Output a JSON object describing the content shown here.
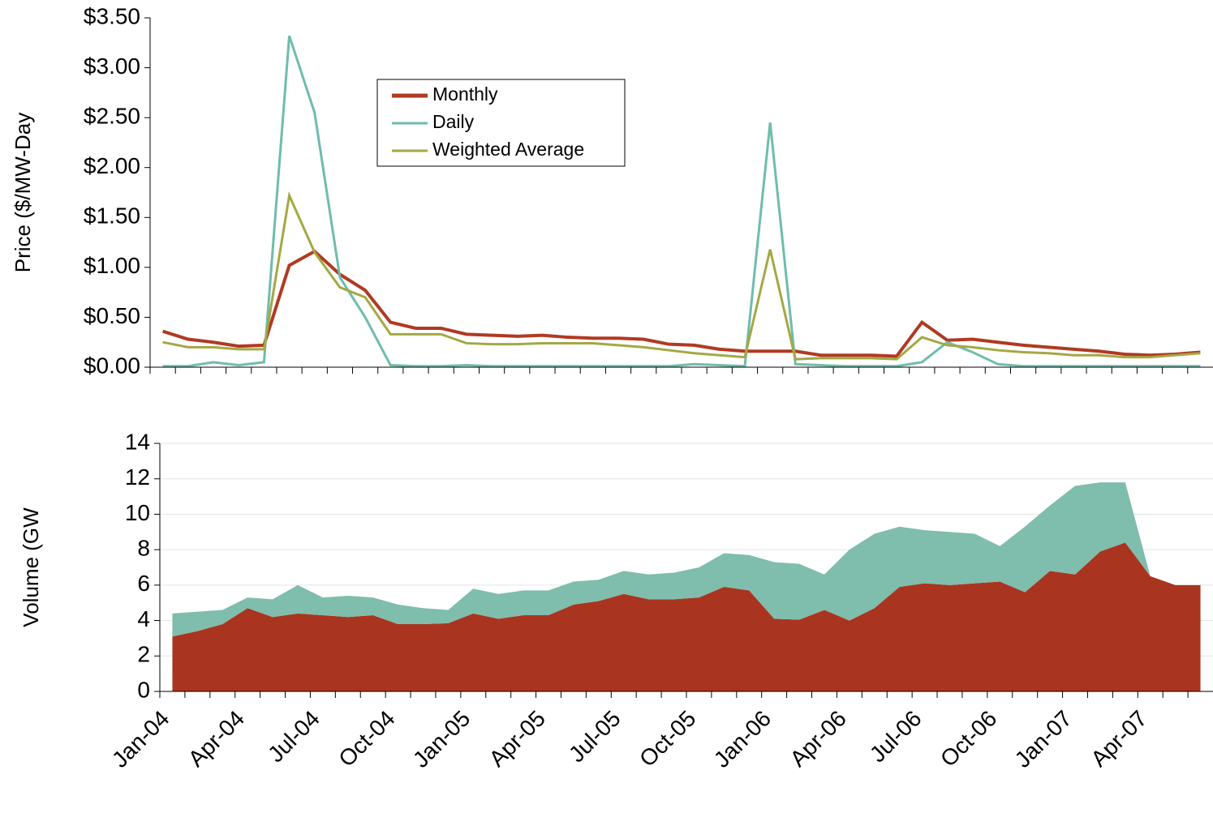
{
  "chart_data": [
    {
      "type": "line",
      "y_label": "Price ($/MW-Day",
      "ylim": [
        0,
        3.5
      ],
      "yticks": [
        {
          "value": 0,
          "label": "$0.00"
        },
        {
          "value": 0.5,
          "label": "$0.50"
        },
        {
          "value": 1,
          "label": "$1.00"
        },
        {
          "value": 1.5,
          "label": "$1.50"
        },
        {
          "value": 2,
          "label": "$2.00"
        },
        {
          "value": 2.5,
          "label": "$2.50"
        },
        {
          "value": 3,
          "label": "$3.00"
        },
        {
          "value": 3.5,
          "label": "$3.50"
        }
      ],
      "grid": false,
      "legend": "upper center",
      "series": [
        {
          "name": "Monthly",
          "color": "#b03a22",
          "values": [
            0.36,
            0.28,
            0.25,
            0.21,
            0.22,
            1.02,
            1.16,
            0.93,
            0.77,
            0.45,
            0.39,
            0.39,
            0.33,
            0.32,
            0.31,
            0.32,
            0.3,
            0.29,
            0.29,
            0.28,
            0.23,
            0.22,
            0.18,
            0.16,
            0.16,
            0.16,
            0.12,
            0.12,
            0.12,
            0.11,
            0.45,
            0.27,
            0.28,
            0.25,
            0.22,
            0.2,
            0.18,
            0.16,
            0.13,
            0.12,
            0.13,
            0.15
          ]
        },
        {
          "name": "Daily",
          "color": "#6fbcac",
          "values": [
            0.01,
            0.01,
            0.05,
            0.02,
            0.05,
            3.32,
            2.55,
            0.9,
            0.5,
            0.02,
            0.01,
            0.01,
            0.02,
            0.01,
            0.01,
            0.01,
            0.01,
            0.01,
            0.01,
            0.01,
            0.01,
            0.03,
            0.02,
            0.01,
            2.45,
            0.03,
            0.02,
            0.01,
            0.01,
            0.01,
            0.05,
            0.25,
            0.15,
            0.03,
            0.01,
            0.01,
            0.01,
            0.01,
            0.01,
            0.01,
            0.01,
            0.01
          ]
        },
        {
          "name": "Weighted Average",
          "color": "#a3a844",
          "values": [
            0.25,
            0.2,
            0.2,
            0.18,
            0.18,
            1.72,
            1.15,
            0.8,
            0.7,
            0.33,
            0.33,
            0.33,
            0.24,
            0.23,
            0.23,
            0.24,
            0.24,
            0.24,
            0.22,
            0.2,
            0.17,
            0.14,
            0.12,
            0.1,
            1.18,
            0.08,
            0.09,
            0.09,
            0.09,
            0.08,
            0.3,
            0.22,
            0.2,
            0.17,
            0.15,
            0.14,
            0.12,
            0.12,
            0.1,
            0.1,
            0.12,
            0.14
          ]
        }
      ]
    },
    {
      "type": "stacked-area",
      "y_label": "Volume (GW",
      "ylim": [
        0,
        14
      ],
      "yticks": [
        0,
        2,
        4,
        6,
        8,
        10,
        12,
        14
      ],
      "grid": true,
      "categories": [
        "Jan-04",
        null,
        null,
        "Apr-04",
        null,
        null,
        "Jul-04",
        null,
        null,
        "Oct-04",
        null,
        null,
        "Jan-05",
        null,
        null,
        "Apr-05",
        null,
        null,
        "Jul-05",
        null,
        null,
        "Oct-05",
        null,
        null,
        "Jan-06",
        null,
        null,
        "Apr-06",
        null,
        null,
        "Jul-06",
        null,
        null,
        "Oct-06",
        null,
        null,
        "Jan-07",
        null,
        null,
        "Apr-07",
        null,
        null
      ],
      "series": [
        {
          "color": "#a93520",
          "values": [
            3.1,
            3.4,
            3.8,
            4.7,
            4.2,
            4.4,
            4.3,
            4.2,
            4.3,
            3.8,
            3.8,
            3.85,
            4.4,
            4.1,
            4.3,
            4.3,
            4.9,
            5.1,
            5.5,
            5.2,
            5.2,
            5.3,
            5.9,
            5.7,
            4.1,
            4.05,
            4.6,
            4.0,
            4.7,
            5.9,
            6.1,
            6.0,
            6.1,
            6.2,
            5.6,
            6.8,
            6.6,
            7.9,
            8.4,
            6.5,
            6.0,
            6.0
          ]
        },
        {
          "color": "#7fbdac",
          "values": [
            1.3,
            1.1,
            0.8,
            0.6,
            1.0,
            1.6,
            1.0,
            1.2,
            1.0,
            1.1,
            0.9,
            0.75,
            1.4,
            1.4,
            1.4,
            1.4,
            1.3,
            1.2,
            1.3,
            1.4,
            1.5,
            1.7,
            1.9,
            2.0,
            3.2,
            3.15,
            2.0,
            4.0,
            4.2,
            3.4,
            3.0,
            3.0,
            2.8,
            2.0,
            3.7,
            3.7,
            5.0,
            3.9,
            3.4,
            0,
            0,
            0
          ]
        }
      ]
    }
  ]
}
